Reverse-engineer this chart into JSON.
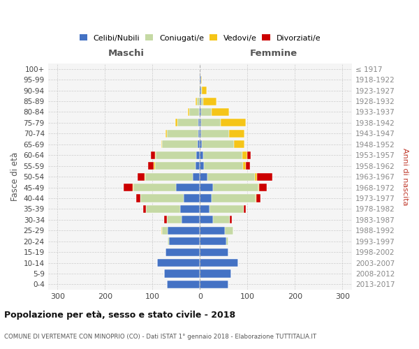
{
  "age_groups_bottom_to_top": [
    "0-4",
    "5-9",
    "10-14",
    "15-19",
    "20-24",
    "25-29",
    "30-34",
    "35-39",
    "40-44",
    "45-49",
    "50-54",
    "55-59",
    "60-64",
    "65-69",
    "70-74",
    "75-79",
    "80-84",
    "85-89",
    "90-94",
    "95-99",
    "100+"
  ],
  "birth_years_bottom_to_top": [
    "2013-2017",
    "2008-2012",
    "2003-2007",
    "1998-2002",
    "1993-1997",
    "1988-1992",
    "1983-1987",
    "1978-1982",
    "1973-1977",
    "1968-1972",
    "1963-1967",
    "1958-1962",
    "1953-1957",
    "1948-1952",
    "1943-1947",
    "1938-1942",
    "1933-1937",
    "1928-1932",
    "1923-1927",
    "1918-1922",
    "≤ 1917"
  ],
  "male_celibi": [
    70,
    75,
    90,
    72,
    65,
    68,
    38,
    42,
    35,
    50,
    15,
    10,
    8,
    5,
    4,
    3,
    2,
    1,
    0,
    0,
    1
  ],
  "male_coniugati": [
    0,
    0,
    0,
    0,
    3,
    12,
    32,
    72,
    90,
    90,
    100,
    85,
    85,
    75,
    65,
    45,
    20,
    6,
    2,
    0,
    0
  ],
  "male_vedovi": [
    0,
    0,
    0,
    0,
    0,
    2,
    0,
    0,
    1,
    1,
    2,
    2,
    2,
    2,
    3,
    4,
    4,
    2,
    0,
    0,
    0
  ],
  "male_divorziati": [
    0,
    0,
    0,
    0,
    0,
    0,
    5,
    5,
    8,
    20,
    14,
    12,
    8,
    0,
    0,
    0,
    0,
    0,
    0,
    0,
    0
  ],
  "female_nubili": [
    60,
    65,
    80,
    60,
    55,
    52,
    28,
    20,
    25,
    28,
    15,
    8,
    7,
    4,
    3,
    2,
    2,
    2,
    2,
    2,
    0
  ],
  "female_coniugate": [
    0,
    0,
    0,
    0,
    5,
    18,
    35,
    72,
    92,
    95,
    100,
    82,
    82,
    68,
    58,
    42,
    22,
    5,
    2,
    0,
    0
  ],
  "female_vedove": [
    0,
    0,
    0,
    0,
    0,
    0,
    0,
    0,
    1,
    2,
    5,
    6,
    10,
    22,
    32,
    52,
    38,
    28,
    10,
    2,
    0
  ],
  "female_divorziate": [
    0,
    0,
    0,
    0,
    0,
    0,
    4,
    5,
    10,
    15,
    32,
    10,
    8,
    0,
    0,
    0,
    0,
    0,
    0,
    0,
    0
  ],
  "colors": {
    "celibi": "#4472c4",
    "coniugati": "#c5d9a4",
    "vedovi": "#f5c518",
    "divorziati": "#cc0000"
  },
  "xlim": 320,
  "title": "Popolazione per età, sesso e stato civile - 2018",
  "subtitle": "COMUNE DI VERTEMATE CON MINOPRIO (CO) - Dati ISTAT 1° gennaio 2018 - Elaborazione TUTTITALIA.IT",
  "xlabel_male": "Maschi",
  "xlabel_female": "Femmine",
  "ylabel_left": "Fasce di età",
  "ylabel_right": "Anni di nascita"
}
